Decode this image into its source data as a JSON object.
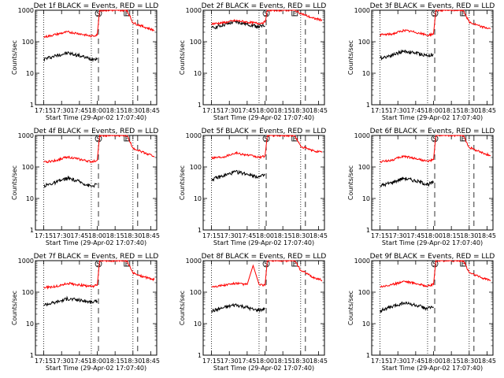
{
  "figure": {
    "xlabel": "Start Time (29-Apr-02 17:07:40)",
    "ylabel": "Counts/sec",
    "x_tick_labels": [
      "17:15",
      "17:30",
      "17:45",
      "18:00",
      "18:15",
      "18:30",
      "18:45"
    ],
    "y_tick_labels": [
      "1",
      "10",
      "100",
      "1000"
    ],
    "region_markers": [
      {
        "label": "S",
        "time": "18:01"
      },
      {
        "label": "E",
        "time": "18:25"
      }
    ],
    "colors": {
      "events": "#000000",
      "lld": "#ff0000"
    }
  },
  "chart_data": [
    {
      "type": "line",
      "title": "Det 1f BLACK = Events, RED = LLD",
      "xlim": [
        "17:08",
        "18:50"
      ],
      "ylim": [
        1,
        1000
      ],
      "yscale": "log",
      "grid": false,
      "x": [
        "17:15",
        "17:25",
        "17:35",
        "17:45",
        "17:55",
        "18:00",
        "18:02",
        "18:25",
        "18:30",
        "18:40",
        "18:48"
      ],
      "series": [
        {
          "name": "Events",
          "color": "#000000",
          "values": [
            28,
            36,
            44,
            36,
            28,
            30,
            null,
            null,
            null,
            null,
            null
          ]
        },
        {
          "name": "LLD",
          "color": "#ff0000",
          "values": [
            140,
            170,
            205,
            180,
            150,
            165,
            1000,
            1000,
            400,
            290,
            230
          ]
        }
      ]
    },
    {
      "type": "line",
      "title": "Det 2f BLACK = Events, RED = LLD",
      "xlim": [
        "17:08",
        "18:50"
      ],
      "ylim": [
        1,
        1000
      ],
      "yscale": "log",
      "grid": false,
      "x": [
        "17:15",
        "17:25",
        "17:35",
        "17:45",
        "17:55",
        "18:00",
        "18:02",
        "18:25",
        "18:30",
        "18:40",
        "18:48"
      ],
      "series": [
        {
          "name": "Events",
          "color": "#000000",
          "values": [
            270,
            340,
            430,
            360,
            300,
            320,
            null,
            null,
            null,
            null,
            null
          ]
        },
        {
          "name": "LLD",
          "color": "#ff0000",
          "values": [
            370,
            400,
            470,
            420,
            380,
            420,
            1000,
            1000,
            800,
            560,
            490
          ]
        }
      ]
    },
    {
      "type": "line",
      "title": "Det 3f BLACK = Events, RED = LLD",
      "xlim": [
        "17:08",
        "18:50"
      ],
      "ylim": [
        1,
        1000
      ],
      "yscale": "log",
      "grid": false,
      "x": [
        "17:15",
        "17:25",
        "17:35",
        "17:45",
        "17:55",
        "18:00",
        "18:02",
        "18:25",
        "18:30",
        "18:40",
        "18:48"
      ],
      "series": [
        {
          "name": "Events",
          "color": "#000000",
          "values": [
            30,
            38,
            50,
            44,
            36,
            40,
            null,
            null,
            null,
            null,
            null
          ]
        },
        {
          "name": "LLD",
          "color": "#ff0000",
          "values": [
            165,
            175,
            230,
            200,
            160,
            180,
            1000,
            1000,
            420,
            300,
            260
          ]
        }
      ]
    },
    {
      "type": "line",
      "title": "Det 4f BLACK = Events, RED = LLD",
      "xlim": [
        "17:08",
        "18:50"
      ],
      "ylim": [
        1,
        1000
      ],
      "yscale": "log",
      "grid": false,
      "x": [
        "17:15",
        "17:25",
        "17:35",
        "17:45",
        "17:55",
        "18:00",
        "18:02",
        "18:25",
        "18:30",
        "18:40",
        "18:48"
      ],
      "series": [
        {
          "name": "Events",
          "color": "#000000",
          "values": [
            25,
            32,
            44,
            34,
            24,
            28,
            null,
            null,
            null,
            null,
            null
          ]
        },
        {
          "name": "LLD",
          "color": "#ff0000",
          "values": [
            140,
            160,
            210,
            175,
            145,
            165,
            1000,
            1000,
            400,
            280,
            220
          ]
        }
      ]
    },
    {
      "type": "line",
      "title": "Det 5f BLACK = Events, RED = LLD",
      "xlim": [
        "17:08",
        "18:50"
      ],
      "ylim": [
        1,
        1000
      ],
      "yscale": "log",
      "grid": false,
      "x": [
        "17:15",
        "17:25",
        "17:35",
        "17:45",
        "17:55",
        "18:00",
        "18:02",
        "18:25",
        "18:30",
        "18:40",
        "18:48"
      ],
      "series": [
        {
          "name": "Events",
          "color": "#000000",
          "values": [
            40,
            52,
            70,
            60,
            48,
            55,
            null,
            null,
            null,
            null,
            null
          ]
        },
        {
          "name": "LLD",
          "color": "#ff0000",
          "values": [
            195,
            210,
            280,
            240,
            200,
            220,
            1000,
            1000,
            450,
            330,
            290
          ]
        }
      ]
    },
    {
      "type": "line",
      "title": "Det 6f BLACK = Events, RED = LLD",
      "xlim": [
        "17:08",
        "18:50"
      ],
      "ylim": [
        1,
        1000
      ],
      "yscale": "log",
      "grid": false,
      "x": [
        "17:15",
        "17:25",
        "17:35",
        "17:45",
        "17:55",
        "18:00",
        "18:02",
        "18:25",
        "18:30",
        "18:40",
        "18:48"
      ],
      "series": [
        {
          "name": "Events",
          "color": "#000000",
          "values": [
            25,
            32,
            44,
            36,
            28,
            32,
            null,
            null,
            null,
            null,
            null
          ]
        },
        {
          "name": "LLD",
          "color": "#ff0000",
          "values": [
            145,
            165,
            220,
            185,
            150,
            170,
            1000,
            1000,
            420,
            290,
            230
          ]
        }
      ]
    },
    {
      "type": "line",
      "title": "Det 7f BLACK = Events, RED = LLD",
      "xlim": [
        "17:08",
        "18:50"
      ],
      "ylim": [
        1,
        1000
      ],
      "yscale": "log",
      "grid": false,
      "x": [
        "17:15",
        "17:25",
        "17:35",
        "17:45",
        "17:55",
        "18:00",
        "18:02",
        "18:25",
        "18:30",
        "18:40",
        "18:48"
      ],
      "series": [
        {
          "name": "Events",
          "color": "#000000",
          "values": [
            40,
            48,
            62,
            56,
            48,
            52,
            null,
            null,
            null,
            null,
            null
          ]
        },
        {
          "name": "LLD",
          "color": "#ff0000",
          "values": [
            140,
            150,
            190,
            170,
            150,
            165,
            1000,
            1000,
            400,
            300,
            250
          ]
        }
      ]
    },
    {
      "type": "line",
      "title": "Det 8f BLACK = Events, RED = LLD",
      "xlim": [
        "17:08",
        "18:50"
      ],
      "ylim": [
        1,
        1000
      ],
      "yscale": "log",
      "grid": false,
      "x": [
        "17:15",
        "17:25",
        "17:35",
        "17:45",
        "17:50",
        "17:55",
        "18:00",
        "18:02",
        "18:25",
        "18:30",
        "18:40",
        "18:48"
      ],
      "series": [
        {
          "name": "Events",
          "color": "#000000",
          "values": [
            25,
            32,
            40,
            33,
            28,
            27,
            30,
            null,
            null,
            null,
            null,
            null
          ]
        },
        {
          "name": "LLD",
          "color": "#ff0000",
          "values": [
            150,
            165,
            190,
            175,
            700,
            175,
            165,
            1000,
            1000,
            500,
            300,
            240
          ]
        }
      ]
    },
    {
      "type": "line",
      "title": "Det 9f BLACK = Events, RED = LLD",
      "xlim": [
        "17:08",
        "18:50"
      ],
      "ylim": [
        1,
        1000
      ],
      "yscale": "log",
      "grid": false,
      "x": [
        "17:15",
        "17:25",
        "17:35",
        "17:45",
        "17:55",
        "18:00",
        "18:02",
        "18:25",
        "18:30",
        "18:40",
        "18:48"
      ],
      "series": [
        {
          "name": "Events",
          "color": "#000000",
          "values": [
            26,
            34,
            46,
            38,
            30,
            34,
            null,
            null,
            null,
            null,
            null
          ]
        },
        {
          "name": "LLD",
          "color": "#ff0000",
          "values": [
            150,
            170,
            225,
            190,
            155,
            175,
            1000,
            1000,
            420,
            290,
            240
          ]
        }
      ]
    }
  ]
}
